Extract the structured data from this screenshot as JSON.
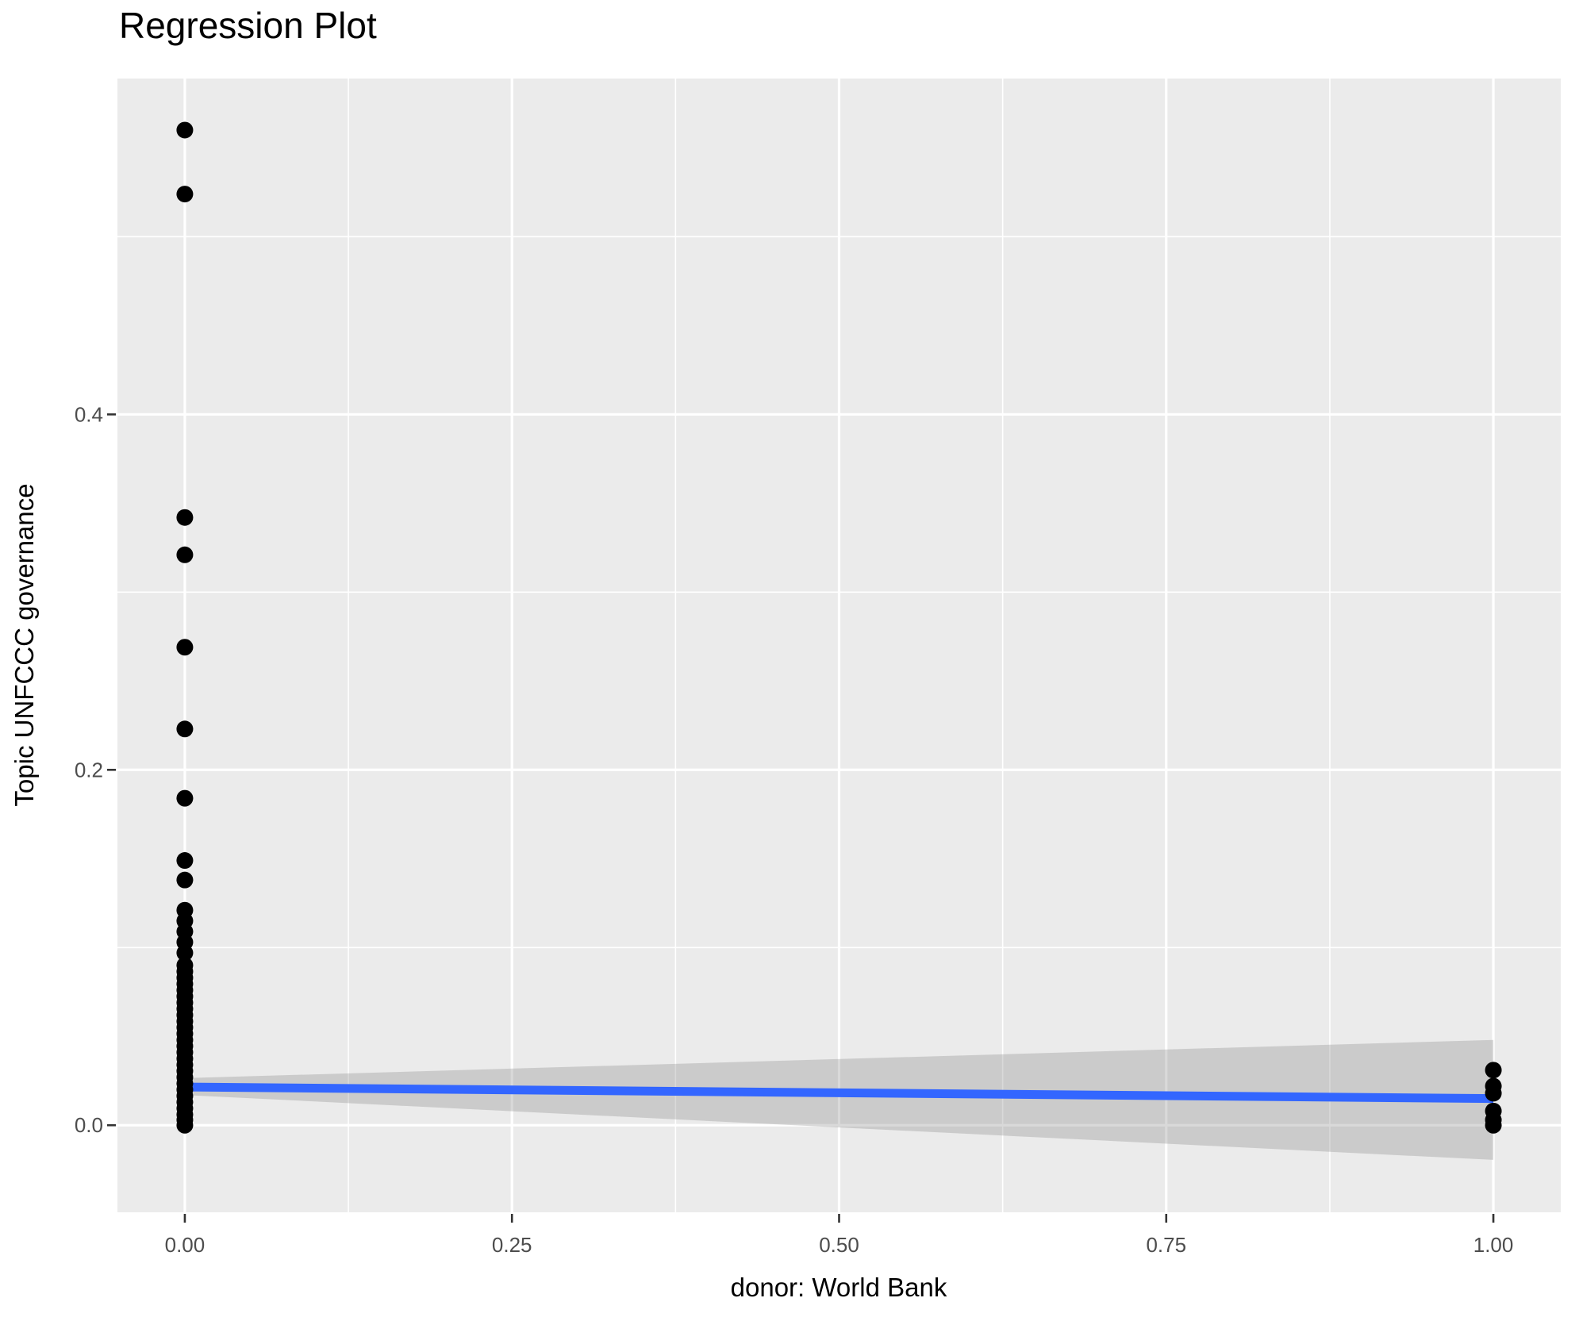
{
  "window": {
    "kind": "r-ggplot-graphics-output"
  },
  "chart_data": {
    "type": "scatter",
    "title": "Regression Plot",
    "xlabel": "donor: World Bank",
    "ylabel": "Topic UNFCCC governance",
    "xlim": [
      -0.0515,
      1.0515
    ],
    "ylim": [
      -0.049,
      0.589
    ],
    "x_ticks": [
      0.0,
      0.25,
      0.5,
      0.75,
      1.0
    ],
    "x_tick_labels": [
      "0.00",
      "0.25",
      "0.50",
      "0.75",
      "1.00"
    ],
    "y_ticks": [
      0.0,
      0.2,
      0.4
    ],
    "y_tick_labels": [
      "0.0",
      "0.2",
      "0.4"
    ],
    "x_minor_ticks": [
      0.125,
      0.375,
      0.625,
      0.875
    ],
    "y_minor_ticks": [
      0.1,
      0.3,
      0.5
    ],
    "grid": true,
    "legend": "none",
    "series": [
      {
        "name": "observations at donor = 0",
        "x": 0,
        "y_values": [
          0.56,
          0.524,
          0.342,
          0.321,
          0.269,
          0.223,
          0.184,
          0.149,
          0.138,
          0.121,
          0.115,
          0.109,
          0.103,
          0.097,
          0.09,
          0.0865,
          0.083,
          0.0795,
          0.076,
          0.0725,
          0.069,
          0.0655,
          0.062,
          0.0585,
          0.055,
          0.0515,
          0.048,
          0.0445,
          0.041,
          0.0375,
          0.034,
          0.0305,
          0.027,
          0.0235,
          0.02,
          0.0165,
          0.013,
          0.0095,
          0.006,
          0.003,
          0.0
        ]
      },
      {
        "name": "observations at donor = 1",
        "x": 1,
        "y_values": [
          0.031,
          0.022,
          0.018,
          0.008,
          0.003,
          0.0
        ]
      }
    ],
    "regression_line": {
      "x": [
        0,
        1
      ],
      "y": [
        0.0215,
        0.015
      ]
    },
    "confidence_band": {
      "x": [
        0,
        1
      ],
      "upper": [
        0.0265,
        0.048
      ],
      "lower": [
        0.017,
        -0.0195
      ]
    }
  },
  "colors": {
    "background": "#FFFFFF",
    "panel_background": "#EBEBEB",
    "grid_major": "#FFFFFF",
    "grid_minor": "#FFFFFF",
    "point": "#000000",
    "regression_line": "#3366FF",
    "confidence_band": "rgba(128,128,128,0.30)",
    "axis_tick": "#333333",
    "tick_label": "#4D4D4D",
    "axis_title": "#000000",
    "title": "#000000"
  }
}
